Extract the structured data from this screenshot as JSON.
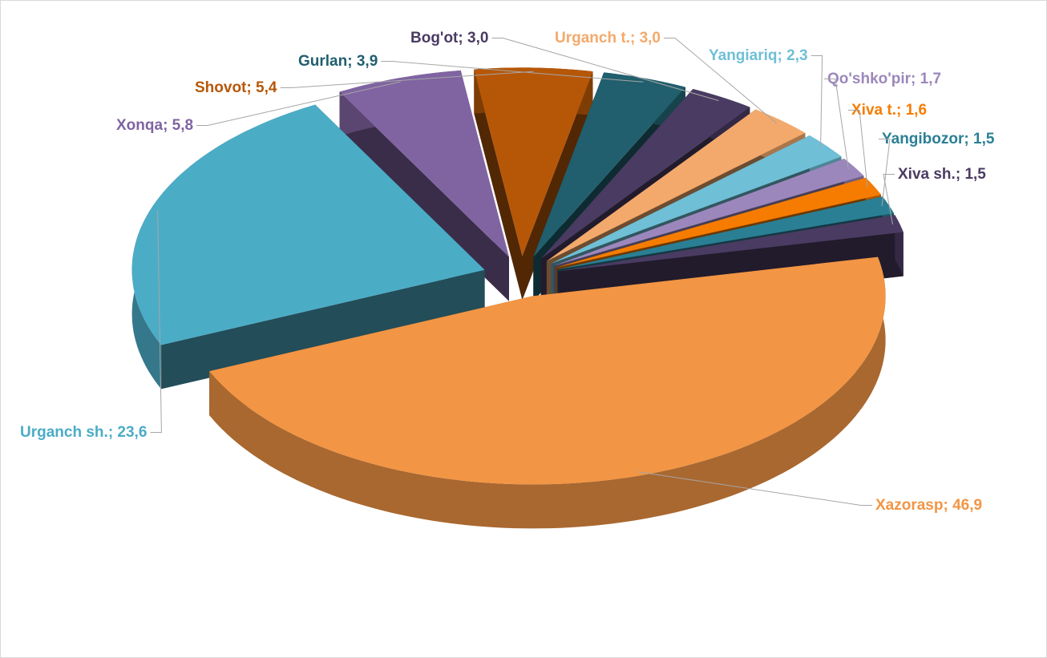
{
  "chart_data": {
    "type": "pie",
    "categories": [
      "Xazorasp",
      "Urganch sh.",
      "Xonqa",
      "Shovot",
      "Gurlan",
      "Bog'ot",
      "Urganch t.",
      "Yangiariq",
      "Qo'shko'pir",
      "Xiva t.",
      "Yangibozor",
      "Xiva sh."
    ],
    "values": [
      46.9,
      23.6,
      5.8,
      5.4,
      3.9,
      3.0,
      3.0,
      2.3,
      1.7,
      1.6,
      1.5,
      1.5
    ],
    "value_labels": [
      "46,9",
      "23,6",
      "5,8",
      "5,4",
      "3,9",
      "3,0",
      "3,0",
      "2,3",
      "1,7",
      "1,6",
      "1,5",
      "1,5"
    ],
    "label_separator": "; ",
    "colors": [
      "#f29544",
      "#4bacc6",
      "#8064a2",
      "#b65708",
      "#215f6e",
      "#4a3b62",
      "#f3a96b",
      "#6fbfd6",
      "#9c87bc",
      "#f57c00",
      "#2a7f94",
      "#4a3b62"
    ]
  }
}
